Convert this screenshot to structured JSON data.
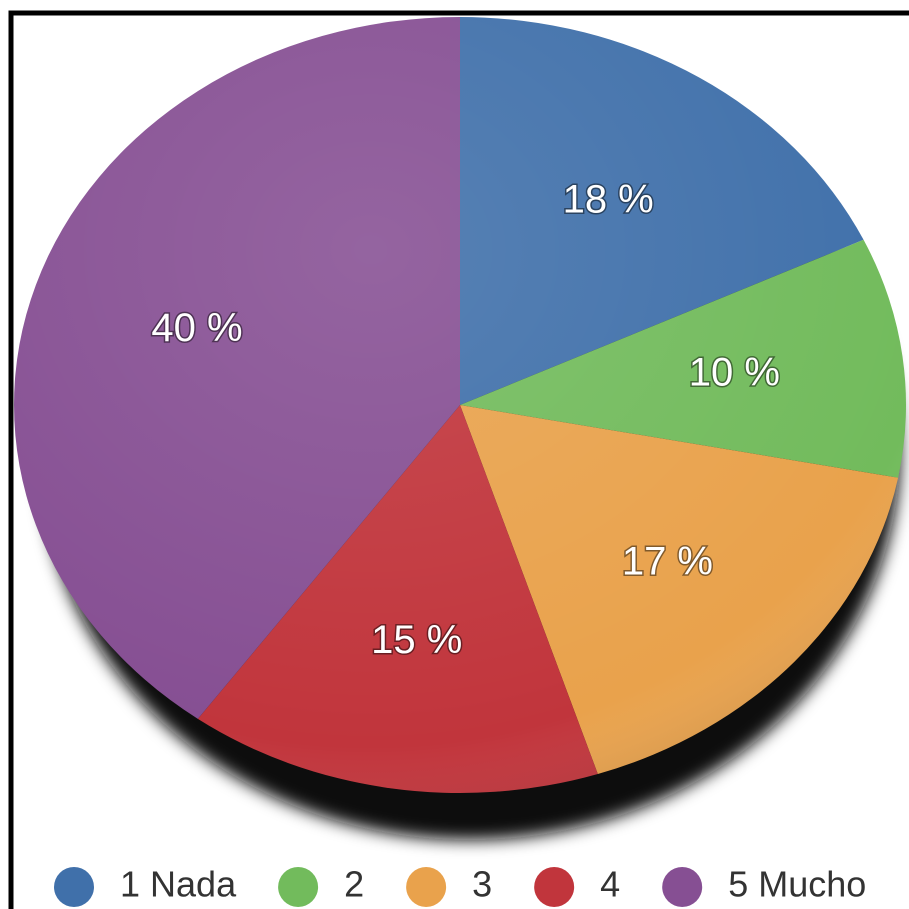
{
  "chart_data": {
    "type": "pie",
    "categories": [
      "1 Nada",
      "2",
      "3",
      "4",
      "5 Mucho"
    ],
    "values": [
      18,
      10,
      17,
      15,
      40
    ],
    "value_labels": [
      "18 %",
      "10 %",
      "17 %",
      "15 %",
      "40 %"
    ],
    "colors": [
      "#4070aa",
      "#72bb5c",
      "#e9a24c",
      "#c1353c",
      "#864f93"
    ],
    "legend": "bottom"
  }
}
